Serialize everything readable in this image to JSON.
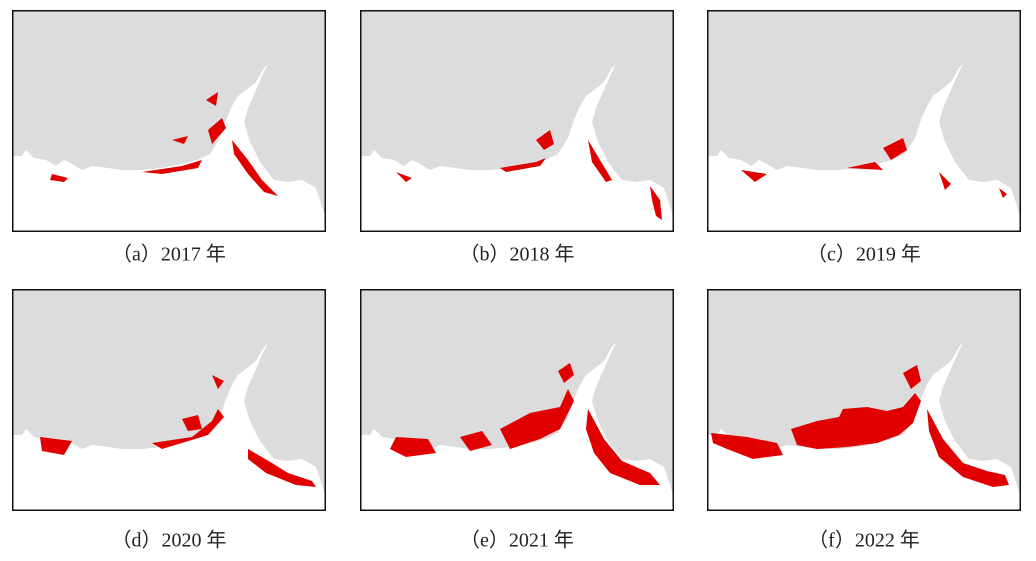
{
  "panels": [
    {
      "caption": "（a）2017 年"
    },
    {
      "caption": "（b）2018 年"
    },
    {
      "caption": "（c）2019 年"
    },
    {
      "caption": "（d）2020 年"
    },
    {
      "caption": "（e）2021 年"
    },
    {
      "caption": "（f）2022 年"
    }
  ]
}
